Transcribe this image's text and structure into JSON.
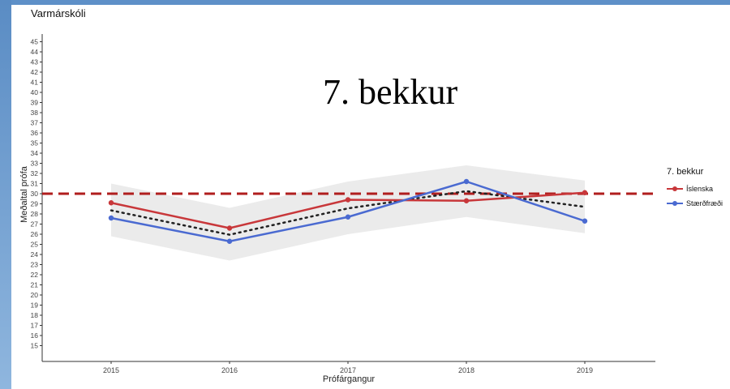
{
  "header": {
    "school_name": "Varmárskóli",
    "grade_title": "7. bekkur"
  },
  "chart_data": {
    "type": "line",
    "title": "",
    "xlabel": "Prófárgangur",
    "ylabel": "Meðaltal prófa",
    "x": [
      2015,
      2016,
      2017,
      2018,
      2019
    ],
    "ylim": [
      15,
      45
    ],
    "yticks": [
      15,
      16,
      17,
      18,
      19,
      20,
      21,
      22,
      23,
      24,
      25,
      26,
      27,
      28,
      29,
      30,
      31,
      32,
      33,
      34,
      35,
      36,
      37,
      38,
      39,
      40,
      41,
      42,
      43,
      44,
      45
    ],
    "xticks": [
      "2015",
      "2016",
      "2017",
      "2018",
      "2019"
    ],
    "grid": false,
    "series": [
      {
        "name": "Íslenska",
        "color": "#c8373a",
        "values": [
          29.1,
          26.6,
          29.4,
          29.3,
          30.1
        ]
      },
      {
        "name": "Stærðfræði",
        "color": "#4a6ad1",
        "values": [
          27.6,
          25.3,
          27.7,
          31.2,
          27.3
        ]
      }
    ],
    "reference_line": {
      "value": 30,
      "color": "#b01e1e",
      "style": "dashed"
    },
    "average_line": {
      "values": [
        28.35,
        25.95,
        28.55,
        30.25,
        28.7
      ],
      "style": "dotted",
      "color": "#222222"
    },
    "band": {
      "upper": [
        31.0,
        28.6,
        31.2,
        32.8,
        31.3
      ],
      "lower": [
        25.8,
        23.4,
        26.0,
        27.7,
        26.1
      ],
      "color": "#ebebeb"
    },
    "legend": {
      "title": "7. bekkur",
      "position": "right",
      "entries": [
        "Íslenska",
        "Stærðfræði"
      ]
    }
  }
}
